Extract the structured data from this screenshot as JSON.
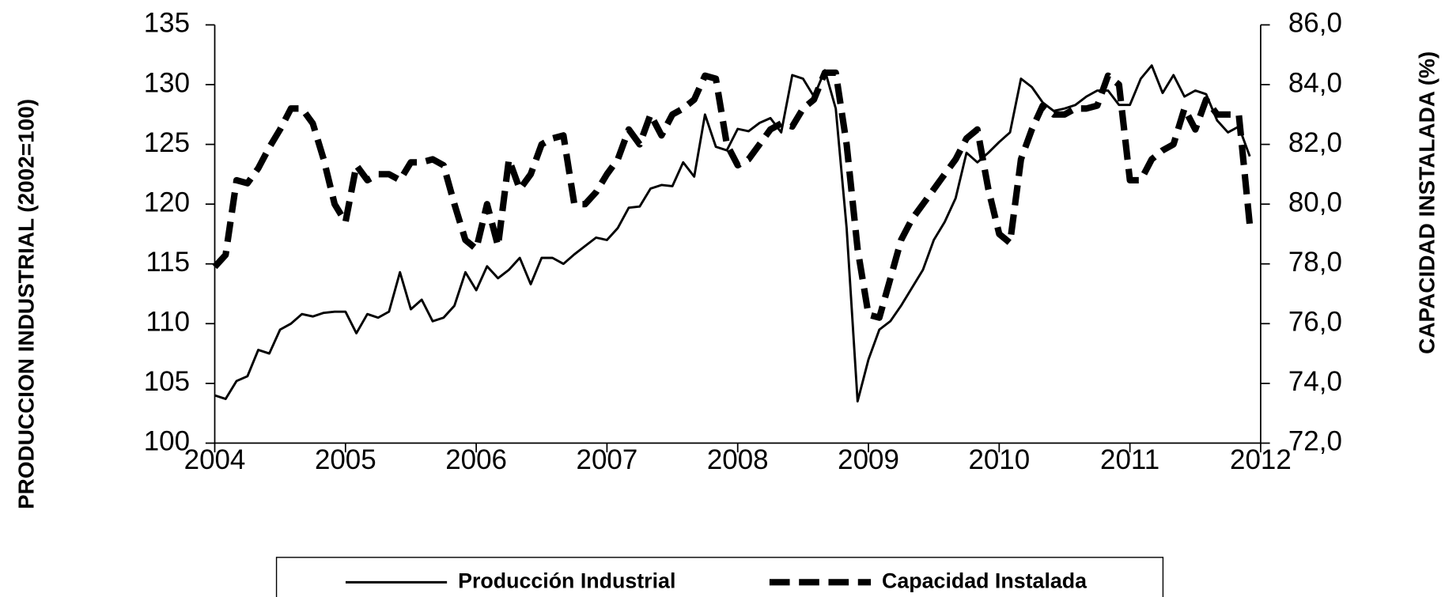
{
  "chart_data": {
    "type": "line",
    "ylabel": "PRODUCCION INDUSTRIAL  (2002=100)",
    "y2label": "CAPACIDAD INSTALADA (%)",
    "xlim": [
      2004,
      2012
    ],
    "xticks": [
      2004,
      2005,
      2006,
      2007,
      2008,
      2009,
      2010,
      2011,
      2012
    ],
    "ylim": [
      100,
      135
    ],
    "yticks": [
      100,
      105,
      110,
      115,
      120,
      125,
      130,
      135
    ],
    "y2lim": [
      72,
      86
    ],
    "y2ticks": [
      {
        "value": 72,
        "label": "72,0"
      },
      {
        "value": 74,
        "label": "74,0"
      },
      {
        "value": 76,
        "label": "76,0"
      },
      {
        "value": 78,
        "label": "78,0"
      },
      {
        "value": 80,
        "label": "80,0"
      },
      {
        "value": 82,
        "label": "82,0"
      },
      {
        "value": 84,
        "label": "84,0"
      },
      {
        "value": 86,
        "label": "86,0"
      }
    ],
    "grid": false,
    "legend": "bottom",
    "x": [
      2004,
      2004.083,
      2004.167,
      2004.25,
      2004.333,
      2004.417,
      2004.5,
      2004.583,
      2004.667,
      2004.75,
      2004.833,
      2004.917,
      2005,
      2005.083,
      2005.167,
      2005.25,
      2005.333,
      2005.417,
      2005.5,
      2005.583,
      2005.667,
      2005.75,
      2005.833,
      2005.917,
      2006,
      2006.083,
      2006.167,
      2006.25,
      2006.333,
      2006.417,
      2006.5,
      2006.583,
      2006.667,
      2006.75,
      2006.833,
      2006.917,
      2007,
      2007.083,
      2007.167,
      2007.25,
      2007.333,
      2007.417,
      2007.5,
      2007.583,
      2007.667,
      2007.75,
      2007.833,
      2007.917,
      2008,
      2008.083,
      2008.167,
      2008.25,
      2008.333,
      2008.417,
      2008.5,
      2008.583,
      2008.667,
      2008.75,
      2008.833,
      2008.917,
      2009,
      2009.083,
      2009.167,
      2009.25,
      2009.333,
      2009.417,
      2009.5,
      2009.583,
      2009.667,
      2009.75,
      2009.833,
      2009.917,
      2010,
      2010.083,
      2010.167,
      2010.25,
      2010.333,
      2010.417,
      2010.5,
      2010.583,
      2010.667,
      2010.75,
      2010.833,
      2010.917,
      2011,
      2011.083,
      2011.167,
      2011.25,
      2011.333,
      2011.417,
      2011.5,
      2011.583,
      2011.667,
      2011.75,
      2011.833,
      2011.917
    ],
    "series": [
      {
        "name": "Producción Industrial",
        "color": "#000000",
        "style": "solid",
        "values": [
          104,
          103.7,
          105.2,
          105.6,
          107.8,
          107.5,
          109.5,
          110,
          110.8,
          110.6,
          110.9,
          111,
          111,
          109.2,
          110.8,
          110.5,
          111,
          114.3,
          111.2,
          112,
          110.2,
          110.5,
          111.5,
          114.3,
          112.8,
          114.8,
          113.8,
          114.5,
          115.5,
          113.3,
          115.5,
          115.5,
          115,
          115.8,
          116.5,
          117.2,
          117,
          118,
          119.7,
          119.8,
          121.3,
          121.6,
          121.5,
          123.5,
          122.3,
          127.5,
          124.8,
          124.5,
          126.3,
          126.1,
          126.8,
          127.2,
          126,
          130.8,
          130.5,
          129,
          131.2,
          128,
          118,
          103.5,
          107,
          109.5,
          110.2,
          111.5,
          113,
          114.5,
          117,
          118.5,
          120.5,
          124.3,
          123.5,
          124.3,
          125.2,
          126,
          130.5,
          129.8,
          128.5,
          127.8,
          128,
          128.3,
          129,
          129.5,
          129.5,
          128.3,
          128.3,
          130.5,
          131.6,
          129.3,
          130.8,
          129,
          129.5,
          129.2,
          127,
          126,
          126.5,
          124
        ]
      },
      {
        "name": "Capacidad Instalada",
        "color": "#000000",
        "style": "dashed",
        "axis": "y2",
        "values": [
          77.9,
          78.3,
          80.8,
          80.7,
          81.2,
          81.9,
          82.5,
          83.2,
          83.2,
          82.7,
          81.5,
          80,
          79.4,
          81.3,
          80.8,
          81,
          81,
          80.8,
          81.4,
          81.4,
          81.5,
          81.3,
          80,
          78.8,
          78.5,
          80,
          78.6,
          81.5,
          80.5,
          81,
          82,
          82.2,
          82.3,
          80,
          80,
          80.4,
          81,
          81.5,
          82.5,
          82,
          83,
          82.3,
          83,
          83.2,
          83.5,
          84.3,
          84.2,
          82,
          81.3,
          81.5,
          82,
          82.5,
          82.7,
          82.6,
          83.2,
          83.5,
          84.4,
          84.4,
          82,
          78.5,
          76.3,
          76.2,
          77.5,
          78.8,
          79.5,
          80,
          80.5,
          81,
          81.5,
          82.2,
          82.5,
          80.5,
          79,
          78.7,
          81.5,
          82.5,
          83.3,
          83,
          83,
          83.2,
          83.2,
          83.3,
          84.3,
          84,
          80.8,
          80.8,
          81.5,
          81.8,
          82,
          83.2,
          82.5,
          83.5,
          83,
          83,
          83,
          79.3
        ]
      }
    ]
  }
}
